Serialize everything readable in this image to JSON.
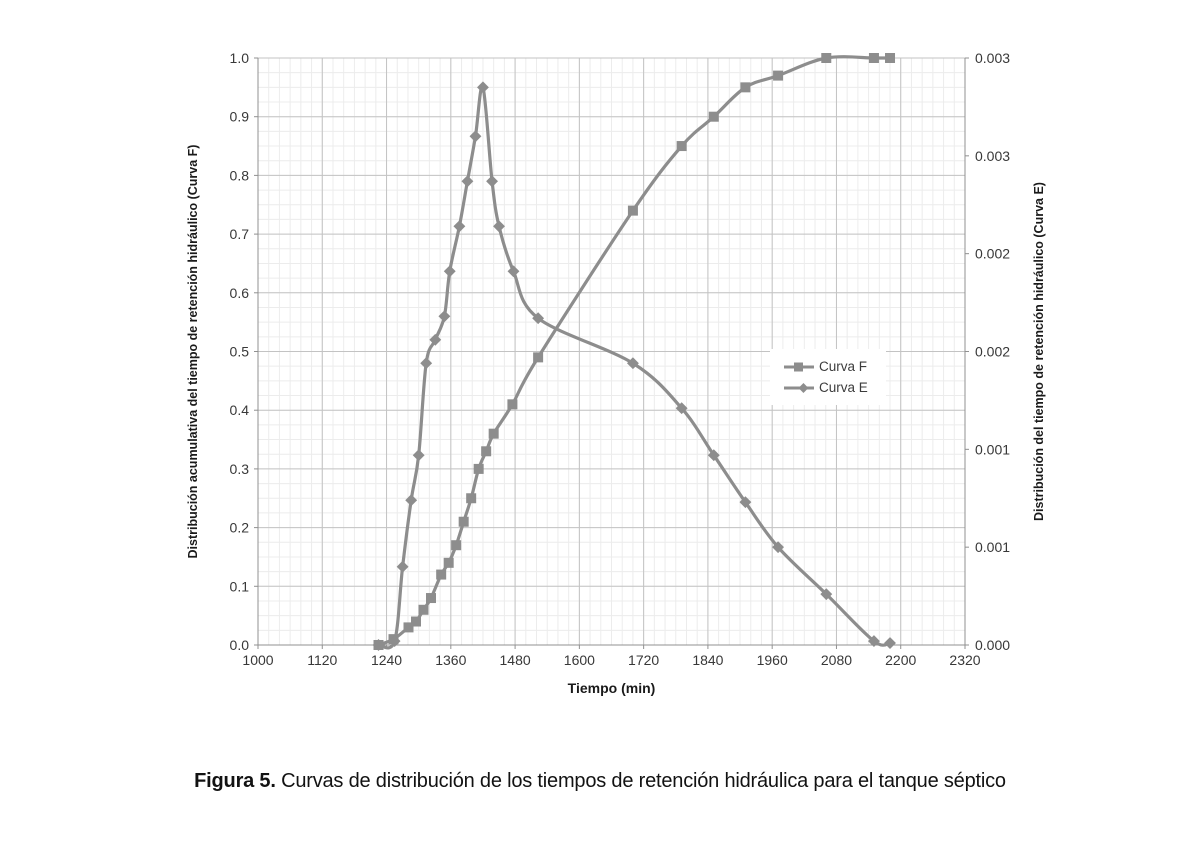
{
  "colors": {
    "series_gray": "#8d8d8d",
    "grid_minor": "#ececec",
    "grid_major": "#c3c3c3",
    "axis_line": "#909090",
    "tick_text": "#383838",
    "title_text": "#1a1a1a"
  },
  "chart_data": {
    "type": "line",
    "title": "",
    "xlabel": "Tiempo (min)",
    "ylabel_left": "Distribución acumulativa del tiempo de retención hidráulico (Curva F)",
    "ylabel_right": "Distribución del tiempo de retención hidráulico (Curva E)",
    "x_axis": {
      "min": 1000,
      "max": 2320,
      "major_step": 120,
      "minor_step": 20,
      "tick_labels": [
        "1000",
        "1120",
        "1240",
        "1360",
        "1480",
        "1600",
        "1720",
        "1840",
        "1960",
        "2080",
        "2200",
        "2320"
      ]
    },
    "y_axis_left": {
      "min": 0,
      "max": 1,
      "major_step": 0.1,
      "minor_step": 0.025,
      "tick_labels_top_to_bottom": [
        "1.0",
        "0.9",
        "0.8",
        "0.7",
        "0.6",
        "0.5",
        "0.4",
        "0.3",
        "0.2",
        "0.1",
        "0.0"
      ]
    },
    "y_axis_right": {
      "min": 0,
      "max": 0.003,
      "tick_labels_top_to_bottom": [
        "0.003",
        "0.003",
        "0.002",
        "0.002",
        "0.001",
        "0.001",
        "0.000"
      ]
    },
    "grid": true,
    "legend_position": "middle-right",
    "series": [
      {
        "name": "Curva F",
        "axis": "left",
        "marker": "square",
        "x": [
          1225,
          1253,
          1281,
          1295,
          1309,
          1323,
          1342,
          1356,
          1370,
          1384,
          1398,
          1412,
          1426,
          1440,
          1475,
          1523,
          1700,
          1791,
          1851,
          1910,
          1971,
          2061,
          2150,
          2180
        ],
        "y": [
          0.0,
          0.01,
          0.03,
          0.04,
          0.06,
          0.08,
          0.12,
          0.14,
          0.17,
          0.21,
          0.25,
          0.3,
          0.33,
          0.36,
          0.41,
          0.49,
          0.74,
          0.85,
          0.9,
          0.95,
          0.97,
          1.0,
          1.0,
          1.0
        ]
      },
      {
        "name": "Curva E",
        "axis": "right",
        "marker": "diamond",
        "x": [
          1225,
          1255,
          1270,
          1286,
          1300,
          1314,
          1331,
          1348,
          1358,
          1376,
          1391,
          1406,
          1420,
          1437,
          1450,
          1477,
          1523,
          1700,
          1791,
          1851,
          1910,
          1971,
          2061,
          2150,
          2180
        ],
        "y": [
          0.0,
          2e-05,
          0.0004,
          0.00074,
          0.00097,
          0.00144,
          0.00156,
          0.00168,
          0.00191,
          0.00214,
          0.00237,
          0.0026,
          0.00285,
          0.00237,
          0.00214,
          0.00191,
          0.00167,
          0.00144,
          0.00121,
          0.00097,
          0.00073,
          0.0005,
          0.00026,
          2e-05,
          1e-05
        ]
      }
    ]
  },
  "caption": {
    "label": "Figura 5.",
    "text": " Curvas de distribución de los tiempos de retención hidráulica para el tanque séptico"
  }
}
